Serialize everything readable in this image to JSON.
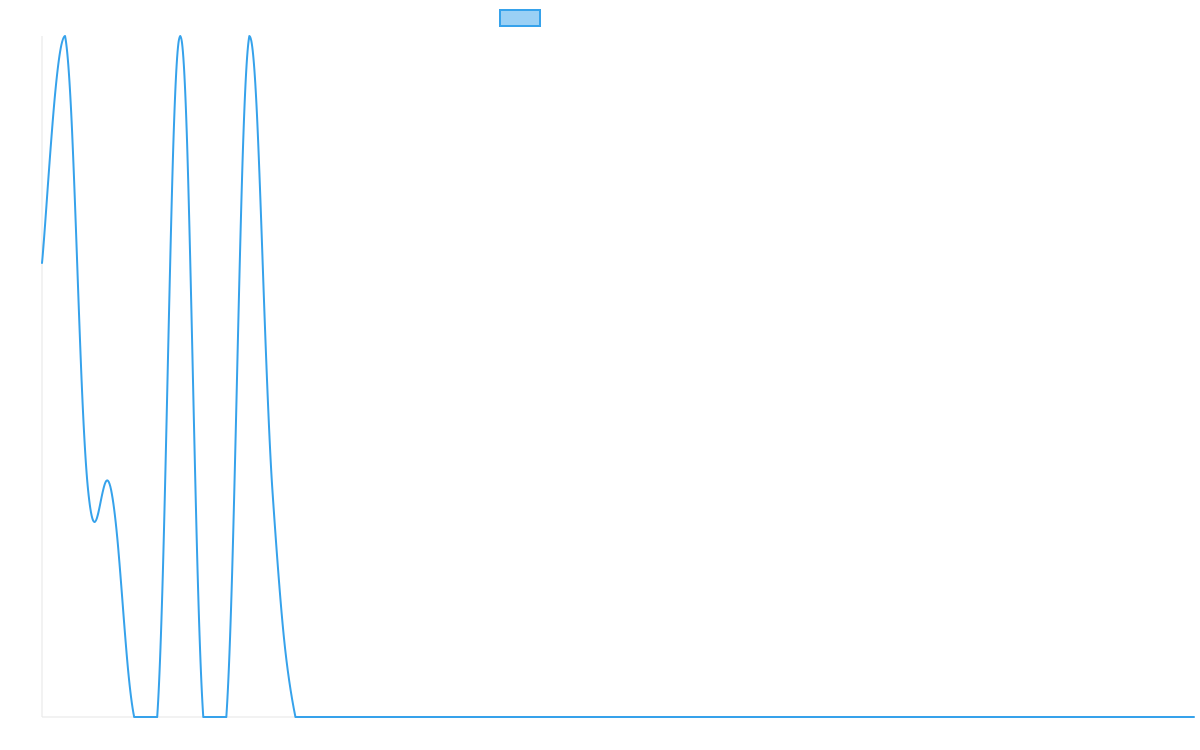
{
  "chart_data": {
    "type": "line",
    "title": "",
    "xlabel": "",
    "ylabel": "",
    "x": [
      0,
      1,
      2,
      3,
      4,
      5,
      6,
      7,
      8,
      9,
      10,
      11,
      12,
      13,
      14,
      15,
      16,
      17,
      18,
      19,
      20,
      21,
      22,
      23,
      24,
      25,
      26,
      27,
      28,
      29,
      30,
      31,
      32,
      33,
      34,
      35,
      36,
      37,
      38,
      39,
      40,
      41,
      42,
      43,
      44,
      45,
      46,
      47,
      48,
      49,
      50
    ],
    "ylim": [
      0,
      3
    ],
    "grid": false,
    "legend": {
      "position": "top-center",
      "show_label": false
    },
    "colors": {
      "series": "#36a2eb",
      "fill": "#9ad0f5"
    },
    "series": [
      {
        "values": [
          2,
          3,
          1,
          1,
          0,
          0,
          3,
          0,
          0,
          3,
          1,
          0,
          0,
          0,
          0,
          0,
          0,
          0,
          0,
          0,
          0,
          0,
          0,
          0,
          0,
          0,
          0,
          0,
          0,
          0,
          0,
          0,
          0,
          0,
          0,
          0,
          0,
          0,
          0,
          0,
          0,
          0,
          0,
          0,
          0,
          0,
          0,
          0,
          0,
          0,
          0
        ]
      }
    ]
  }
}
